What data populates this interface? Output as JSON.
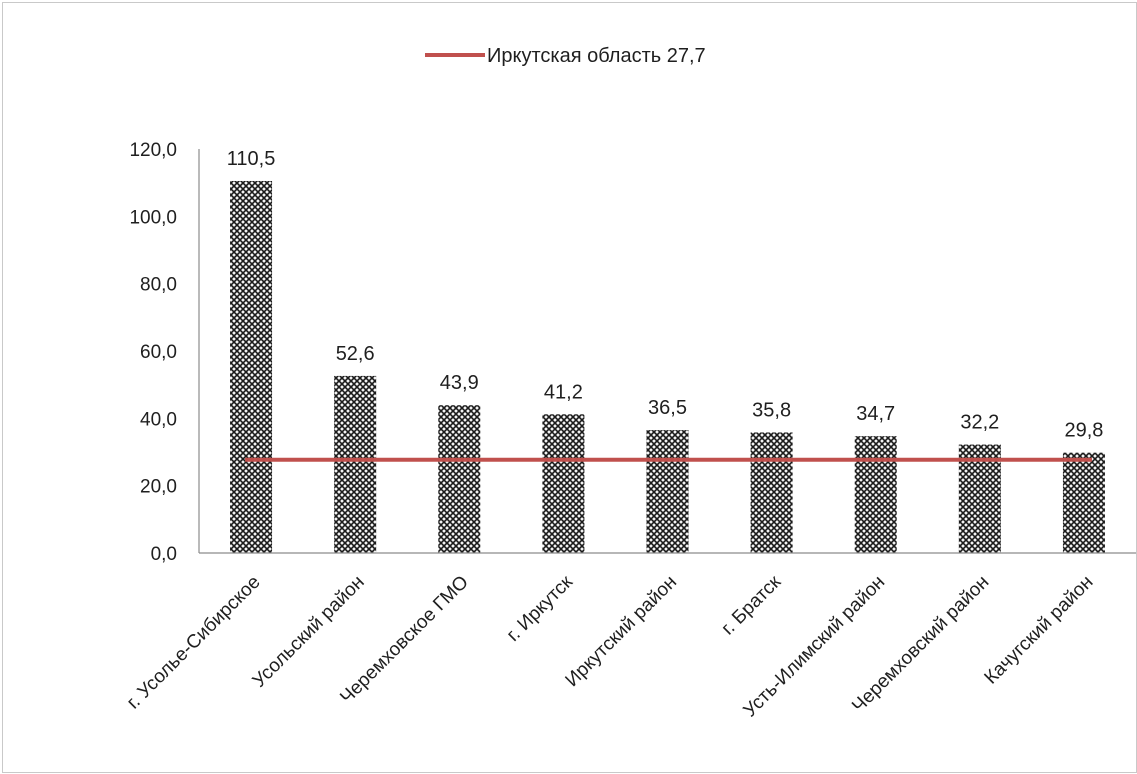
{
  "chart_data": {
    "type": "bar",
    "categories": [
      "г. Усолье-Сибирское",
      "Усольский район",
      "Черемховское ГМО",
      "г. Иркутск",
      "Иркутский район",
      "г. Братск",
      "Усть-Илимский район",
      "Черемховский район",
      "Качугский район"
    ],
    "values": [
      110.5,
      52.6,
      43.9,
      41.2,
      36.5,
      35.8,
      34.7,
      32.2,
      29.8
    ],
    "value_labels": [
      "110,5",
      "52,6",
      "43,9",
      "41,2",
      "36,5",
      "35,8",
      "34,7",
      "32,2",
      "29,8"
    ],
    "reference_line": {
      "label": "Иркутская область 27,7",
      "value": 27.7,
      "color": "#c0504d"
    },
    "ylim": [
      0,
      120
    ],
    "yticks": [
      {
        "value": 0,
        "label": "0,0"
      },
      {
        "value": 20,
        "label": "20,0"
      },
      {
        "value": 40,
        "label": "40,0"
      },
      {
        "value": 60,
        "label": "60,0"
      },
      {
        "value": 80,
        "label": "80,0"
      },
      {
        "value": 100,
        "label": "100,0"
      },
      {
        "value": 120,
        "label": "120,0"
      }
    ],
    "grid": false,
    "legend": "top-center",
    "bar_color": "#2b2b2b"
  }
}
